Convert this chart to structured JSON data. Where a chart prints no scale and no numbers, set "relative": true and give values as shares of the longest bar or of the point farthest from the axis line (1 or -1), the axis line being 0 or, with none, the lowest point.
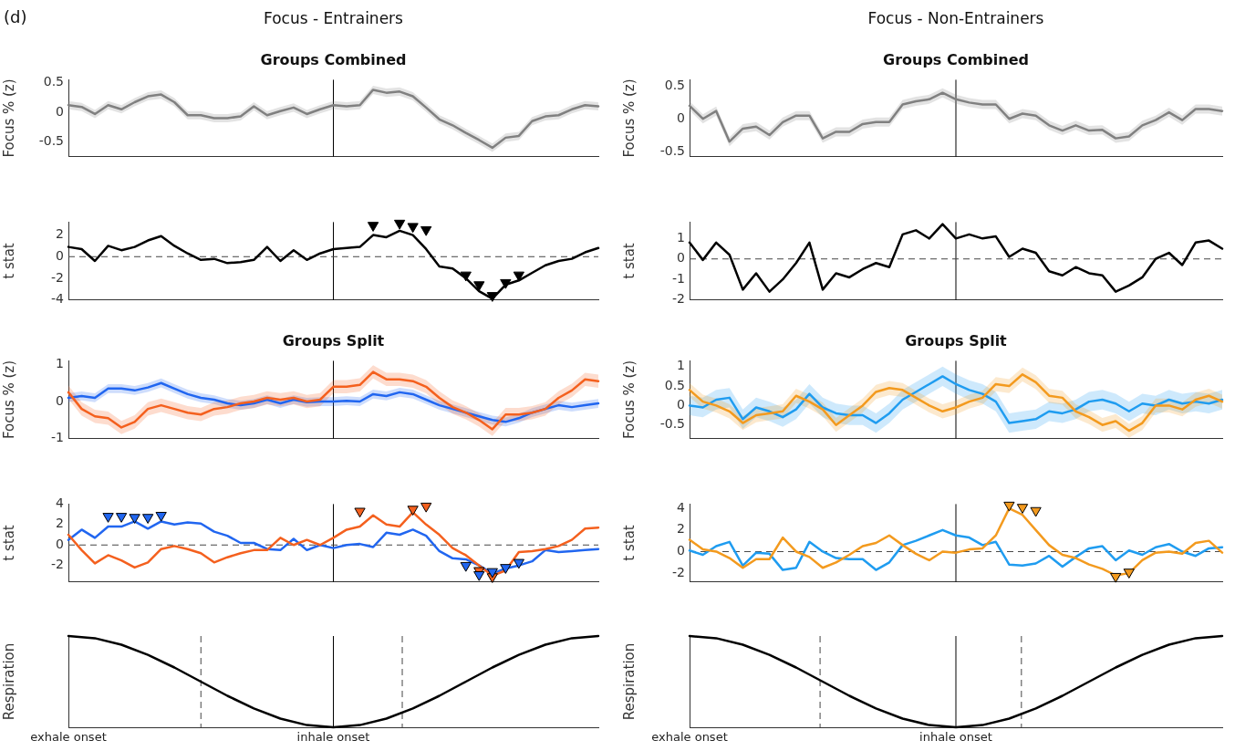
{
  "chart_data": [
    {
      "type": "line",
      "title": "Focus - Entrainers",
      "subtitle": "Groups Combined",
      "ylabel": "Focus % (z)",
      "annotations": [
        "(d)"
      ],
      "ylim": [
        -0.75,
        0.55
      ],
      "yticks": [
        -0.5,
        0,
        0.5
      ],
      "tick_labels": "y",
      "grid": false,
      "categories": [
        null,
        null,
        null,
        null,
        null,
        null,
        null,
        null,
        null,
        null,
        null,
        null,
        null,
        null,
        null,
        null,
        null,
        null,
        null,
        null,
        null,
        null,
        null,
        null,
        null,
        null,
        null,
        null,
        null,
        null,
        null,
        null,
        null,
        null,
        null,
        null,
        null,
        null,
        null,
        null,
        null
      ],
      "series": [
        {
          "color": "#808080",
          "values": [
            0.12,
            0.09,
            -0.03,
            0.12,
            0.05,
            0.17,
            0.27,
            0.3,
            0.17,
            -0.05,
            -0.05,
            -0.1,
            -0.1,
            -0.07,
            0.1,
            -0.05,
            0.02,
            0.08,
            -0.03,
            0.05,
            0.12,
            0.1,
            0.12,
            0.38,
            0.33,
            0.35,
            0.27,
            0.08,
            -0.12,
            -0.22,
            -0.35,
            -0.47,
            -0.6,
            -0.43,
            -0.4,
            -0.15,
            -0.07,
            -0.05,
            0.05,
            0.12,
            0.1
          ],
          "lower": [
            0.05,
            0.02,
            -0.1,
            0.05,
            -0.02,
            0.1,
            0.2,
            0.23,
            0.1,
            -0.12,
            -0.12,
            -0.17,
            -0.17,
            -0.14,
            0.03,
            -0.12,
            -0.05,
            0.01,
            -0.1,
            -0.02,
            0.05,
            0.03,
            0.05,
            0.31,
            0.26,
            0.28,
            0.2,
            0.01,
            -0.19,
            -0.29,
            -0.42,
            -0.54,
            -0.67,
            -0.5,
            -0.47,
            -0.22,
            -0.14,
            -0.12,
            -0.02,
            0.05,
            0.03
          ],
          "upper": [
            0.19,
            0.16,
            0.04,
            0.19,
            0.12,
            0.24,
            0.34,
            0.37,
            0.24,
            0.02,
            0.02,
            -0.03,
            -0.03,
            0.0,
            0.17,
            0.02,
            0.09,
            0.15,
            0.04,
            0.12,
            0.19,
            0.17,
            0.19,
            0.45,
            0.4,
            0.42,
            0.34,
            0.15,
            -0.05,
            -0.15,
            -0.28,
            -0.4,
            -0.53,
            -0.36,
            -0.33,
            -0.08,
            0.0,
            0.02,
            0.12,
            0.19,
            0.17
          ]
        }
      ]
    },
    {
      "type": "line",
      "title": "Focus - Non-Entrainers",
      "subtitle": "Groups Combined",
      "ylabel": "Focus % (z)",
      "ylim": [
        -0.58,
        0.6
      ],
      "yticks": [
        -0.5,
        0,
        0.5
      ],
      "tick_labels": "y",
      "grid": false,
      "categories": [
        null,
        null,
        null,
        null,
        null,
        null,
        null,
        null,
        null,
        null,
        null,
        null,
        null,
        null,
        null,
        null,
        null,
        null,
        null,
        null,
        null,
        null,
        null,
        null,
        null,
        null,
        null,
        null,
        null,
        null,
        null,
        null,
        null,
        null,
        null,
        null,
        null,
        null,
        null,
        null,
        null
      ],
      "series": [
        {
          "color": "#808080",
          "values": [
            0.2,
            0.0,
            0.12,
            -0.35,
            -0.15,
            -0.12,
            -0.25,
            -0.05,
            0.05,
            0.05,
            -0.3,
            -0.2,
            -0.2,
            -0.08,
            -0.05,
            -0.05,
            0.22,
            0.27,
            0.3,
            0.4,
            0.3,
            0.25,
            0.22,
            0.22,
            0.0,
            0.08,
            0.05,
            -0.1,
            -0.18,
            -0.1,
            -0.18,
            -0.17,
            -0.3,
            -0.27,
            -0.1,
            -0.02,
            0.1,
            -0.02,
            0.15,
            0.15,
            0.12
          ],
          "lower": [
            0.13,
            -0.07,
            0.05,
            -0.42,
            -0.22,
            -0.19,
            -0.32,
            -0.12,
            -0.02,
            -0.02,
            -0.37,
            -0.27,
            -0.27,
            -0.15,
            -0.12,
            -0.12,
            0.15,
            0.2,
            0.23,
            0.33,
            0.23,
            0.18,
            0.15,
            0.15,
            -0.07,
            0.01,
            -0.02,
            -0.17,
            -0.25,
            -0.17,
            -0.25,
            -0.24,
            -0.37,
            -0.34,
            -0.17,
            -0.09,
            0.03,
            -0.09,
            0.08,
            0.08,
            0.05
          ],
          "upper": [
            0.27,
            0.07,
            0.19,
            -0.28,
            -0.08,
            -0.05,
            -0.18,
            0.02,
            0.12,
            0.12,
            -0.23,
            -0.13,
            -0.13,
            -0.01,
            0.02,
            0.02,
            0.29,
            0.34,
            0.37,
            0.47,
            0.37,
            0.32,
            0.29,
            0.29,
            0.07,
            0.15,
            0.12,
            -0.03,
            -0.11,
            -0.03,
            -0.11,
            -0.1,
            -0.23,
            -0.2,
            -0.03,
            0.05,
            0.17,
            0.05,
            0.22,
            0.22,
            0.19
          ]
        }
      ]
    },
    {
      "type": "line",
      "ylabel": "t stat",
      "ylim": [
        -4,
        3.2
      ],
      "yticks": [
        -4,
        -2,
        0,
        2
      ],
      "tick_labels": "y",
      "grid": false,
      "categories": [
        null,
        null,
        null,
        null,
        null,
        null,
        null,
        null,
        null,
        null,
        null,
        null,
        null,
        null,
        null,
        null,
        null,
        null,
        null,
        null,
        null,
        null,
        null,
        null,
        null,
        null,
        null,
        null,
        null,
        null,
        null,
        null,
        null,
        null,
        null,
        null,
        null,
        null,
        null,
        null,
        null
      ],
      "ref_lines": [
        {
          "axis": "y",
          "value": 0,
          "line_style": "dashed"
        }
      ],
      "series": [
        {
          "color": "#000000",
          "values": [
            0.9,
            0.7,
            -0.4,
            1.0,
            0.6,
            0.9,
            1.5,
            1.9,
            1.0,
            0.3,
            -0.3,
            -0.2,
            -0.6,
            -0.5,
            -0.3,
            0.9,
            -0.4,
            0.6,
            -0.3,
            0.3,
            0.7,
            0.8,
            0.9,
            2.0,
            1.8,
            2.4,
            2.0,
            0.7,
            -0.9,
            -1.1,
            -2.0,
            -3.2,
            -3.9,
            -2.6,
            -2.2,
            -1.5,
            -0.8,
            -0.4,
            -0.2,
            0.4,
            0.8
          ]
        },
        {
          "type": "scatter",
          "marker": "triangle",
          "color": "#000000",
          "values": [
            null,
            null,
            null,
            null,
            null,
            null,
            null,
            null,
            null,
            null,
            null,
            null,
            null,
            null,
            null,
            null,
            null,
            null,
            null,
            null,
            null,
            null,
            null,
            2.9,
            null,
            3.1,
            2.8,
            2.5,
            null,
            null,
            -1.7,
            -2.6,
            -3.6,
            -2.4,
            -1.7,
            null,
            null,
            null,
            null,
            null,
            null
          ]
        }
      ]
    },
    {
      "type": "line",
      "ylabel": "t stat",
      "ylim": [
        -2,
        1.8
      ],
      "yticks": [
        -2,
        -1,
        0,
        1
      ],
      "tick_labels": "y",
      "grid": false,
      "categories": [
        null,
        null,
        null,
        null,
        null,
        null,
        null,
        null,
        null,
        null,
        null,
        null,
        null,
        null,
        null,
        null,
        null,
        null,
        null,
        null,
        null,
        null,
        null,
        null,
        null,
        null,
        null,
        null,
        null,
        null,
        null,
        null,
        null,
        null,
        null,
        null,
        null,
        null,
        null,
        null,
        null
      ],
      "ref_lines": [
        {
          "axis": "y",
          "value": 0,
          "line_style": "dashed"
        }
      ],
      "series": [
        {
          "color": "#000000",
          "values": [
            0.8,
            -0.05,
            0.8,
            0.2,
            -1.5,
            -0.7,
            -1.6,
            -1.0,
            -0.2,
            0.8,
            -1.5,
            -0.7,
            -0.9,
            -0.5,
            -0.2,
            -0.4,
            1.2,
            1.4,
            1.0,
            1.7,
            1.0,
            1.2,
            1.0,
            1.1,
            0.1,
            0.5,
            0.3,
            -0.6,
            -0.8,
            -0.4,
            -0.7,
            -0.8,
            -1.6,
            -1.3,
            -0.9,
            0.0,
            0.3,
            -0.3,
            0.8,
            0.9,
            0.5
          ]
        }
      ]
    },
    {
      "type": "line",
      "title": "Groups Split",
      "ylabel": "Focus % (z)",
      "ylim": [
        -1,
        1.1
      ],
      "yticks": [
        -1,
        0,
        1
      ],
      "tick_labels": "y",
      "grid": false,
      "categories": [
        null,
        null,
        null,
        null,
        null,
        null,
        null,
        null,
        null,
        null,
        null,
        null,
        null,
        null,
        null,
        null,
        null,
        null,
        null,
        null,
        null,
        null,
        null,
        null,
        null,
        null,
        null,
        null,
        null,
        null,
        null,
        null,
        null,
        null,
        null,
        null,
        null,
        null,
        null,
        null,
        null
      ],
      "series": [
        {
          "color": "#f4601e",
          "values": [
            0.25,
            -0.2,
            -0.4,
            -0.45,
            -0.7,
            -0.55,
            -0.2,
            -0.1,
            -0.2,
            -0.3,
            -0.35,
            -0.2,
            -0.15,
            -0.05,
            0.0,
            0.1,
            0.05,
            0.1,
            0.0,
            0.05,
            0.4,
            0.4,
            0.45,
            0.8,
            0.6,
            0.6,
            0.55,
            0.4,
            0.1,
            -0.15,
            -0.3,
            -0.5,
            -0.75,
            -0.35,
            -0.35,
            -0.3,
            -0.2,
            0.1,
            0.3,
            0.6,
            0.55
          ],
          "lower": [
            0.07,
            -0.38,
            -0.58,
            -0.63,
            -0.88,
            -0.73,
            -0.38,
            -0.28,
            -0.38,
            -0.48,
            -0.53,
            -0.38,
            -0.33,
            -0.23,
            -0.18,
            -0.08,
            -0.13,
            -0.08,
            -0.18,
            -0.13,
            0.22,
            0.22,
            0.27,
            0.62,
            0.42,
            0.42,
            0.37,
            0.22,
            -0.08,
            -0.33,
            -0.48,
            -0.68,
            -0.93,
            -0.53,
            -0.53,
            -0.48,
            -0.38,
            -0.08,
            0.12,
            0.42,
            0.37
          ],
          "upper": [
            0.43,
            -0.02,
            -0.22,
            -0.27,
            -0.52,
            -0.37,
            -0.02,
            0.08,
            -0.02,
            -0.12,
            -0.17,
            -0.02,
            0.03,
            0.13,
            0.18,
            0.28,
            0.23,
            0.28,
            0.18,
            0.23,
            0.58,
            0.58,
            0.63,
            0.98,
            0.78,
            0.78,
            0.73,
            0.58,
            0.28,
            0.03,
            -0.12,
            -0.32,
            -0.57,
            -0.17,
            -0.17,
            -0.12,
            -0.02,
            0.28,
            0.48,
            0.78,
            0.73
          ]
        },
        {
          "color": "#2166f0",
          "values": [
            0.1,
            0.15,
            0.1,
            0.35,
            0.35,
            0.3,
            0.38,
            0.5,
            0.35,
            0.2,
            0.1,
            0.05,
            -0.05,
            -0.1,
            -0.05,
            0.05,
            -0.05,
            0.05,
            -0.02,
            0.0,
            0.0,
            0.02,
            0.0,
            0.2,
            0.15,
            0.25,
            0.2,
            0.05,
            -0.1,
            -0.2,
            -0.3,
            -0.4,
            -0.5,
            -0.55,
            -0.45,
            -0.3,
            -0.2,
            -0.1,
            -0.15,
            -0.1,
            -0.05
          ],
          "lower": [
            -0.02,
            0.03,
            -0.02,
            0.23,
            0.23,
            0.18,
            0.26,
            0.38,
            0.23,
            0.08,
            -0.02,
            -0.07,
            -0.17,
            -0.22,
            -0.17,
            -0.07,
            -0.17,
            -0.07,
            -0.14,
            -0.12,
            -0.12,
            -0.1,
            -0.12,
            0.08,
            0.03,
            0.13,
            0.08,
            -0.07,
            -0.22,
            -0.32,
            -0.42,
            -0.52,
            -0.62,
            -0.67,
            -0.57,
            -0.42,
            -0.32,
            -0.22,
            -0.27,
            -0.22,
            -0.17
          ],
          "upper": [
            0.22,
            0.27,
            0.22,
            0.47,
            0.47,
            0.42,
            0.5,
            0.62,
            0.47,
            0.32,
            0.22,
            0.17,
            0.07,
            0.02,
            0.07,
            0.17,
            0.07,
            0.17,
            0.1,
            0.12,
            0.12,
            0.14,
            0.12,
            0.32,
            0.27,
            0.37,
            0.32,
            0.17,
            0.02,
            -0.08,
            -0.18,
            -0.28,
            -0.38,
            -0.43,
            -0.33,
            -0.18,
            -0.08,
            0.02,
            -0.03,
            0.02,
            0.07
          ]
        }
      ]
    },
    {
      "type": "line",
      "title": "Groups Split",
      "ylabel": "Focus % (z)",
      "ylim": [
        -0.85,
        1.15
      ],
      "yticks": [
        -0.5,
        0,
        0.5,
        1
      ],
      "tick_labels": "y",
      "grid": false,
      "categories": [
        null,
        null,
        null,
        null,
        null,
        null,
        null,
        null,
        null,
        null,
        null,
        null,
        null,
        null,
        null,
        null,
        null,
        null,
        null,
        null,
        null,
        null,
        null,
        null,
        null,
        null,
        null,
        null,
        null,
        null,
        null,
        null,
        null,
        null,
        null,
        null,
        null,
        null,
        null,
        null,
        null
      ],
      "series": [
        {
          "color": "#f39a1e",
          "values": [
            0.4,
            0.1,
            0.0,
            -0.15,
            -0.45,
            -0.25,
            -0.2,
            -0.15,
            0.25,
            0.1,
            -0.1,
            -0.5,
            -0.25,
            0.0,
            0.35,
            0.45,
            0.4,
            0.2,
            0.0,
            -0.15,
            -0.05,
            0.1,
            0.2,
            0.55,
            0.5,
            0.8,
            0.6,
            0.25,
            0.2,
            -0.15,
            -0.3,
            -0.5,
            -0.4,
            -0.65,
            -0.45,
            0.0,
            0.0,
            -0.1,
            0.15,
            0.25,
            0.1
          ],
          "lower": [
            0.22,
            -0.08,
            -0.18,
            -0.33,
            -0.63,
            -0.43,
            -0.38,
            -0.33,
            0.07,
            -0.08,
            -0.28,
            -0.68,
            -0.43,
            -0.18,
            0.17,
            0.27,
            0.22,
            0.02,
            -0.18,
            -0.33,
            -0.23,
            -0.08,
            0.02,
            0.37,
            0.32,
            0.62,
            0.42,
            0.07,
            0.02,
            -0.33,
            -0.48,
            -0.68,
            -0.58,
            -0.83,
            -0.63,
            -0.18,
            -0.18,
            -0.28,
            -0.03,
            0.07,
            -0.08
          ],
          "upper": [
            0.58,
            0.28,
            0.18,
            0.03,
            -0.27,
            -0.07,
            -0.02,
            0.03,
            0.43,
            0.28,
            0.08,
            -0.32,
            -0.07,
            0.18,
            0.53,
            0.63,
            0.58,
            0.38,
            0.18,
            0.03,
            0.13,
            0.28,
            0.38,
            0.73,
            0.68,
            0.98,
            0.78,
            0.43,
            0.38,
            0.03,
            -0.12,
            -0.32,
            -0.22,
            -0.47,
            -0.27,
            0.18,
            0.18,
            0.08,
            0.33,
            0.43,
            0.28
          ]
        },
        {
          "color": "#1f9cf0",
          "values": [
            0.0,
            -0.05,
            0.15,
            0.2,
            -0.35,
            -0.05,
            -0.15,
            -0.3,
            -0.1,
            0.3,
            -0.05,
            -0.2,
            -0.25,
            -0.25,
            -0.45,
            -0.2,
            0.15,
            0.35,
            0.55,
            0.75,
            0.55,
            0.4,
            0.3,
            0.1,
            -0.45,
            -0.4,
            -0.35,
            -0.15,
            -0.2,
            -0.1,
            0.1,
            0.15,
            0.05,
            -0.15,
            0.05,
            0.0,
            0.15,
            0.05,
            0.1,
            0.05,
            0.15
          ],
          "lower": [
            -0.25,
            -0.3,
            -0.1,
            -0.05,
            -0.6,
            -0.3,
            -0.4,
            -0.55,
            -0.35,
            0.05,
            -0.3,
            -0.45,
            -0.5,
            -0.5,
            -0.7,
            -0.45,
            -0.1,
            0.1,
            0.3,
            0.5,
            0.3,
            0.15,
            0.05,
            -0.15,
            -0.7,
            -0.65,
            -0.6,
            -0.4,
            -0.45,
            -0.35,
            -0.15,
            -0.1,
            -0.2,
            -0.4,
            -0.2,
            -0.25,
            -0.1,
            -0.2,
            -0.15,
            -0.2,
            -0.1
          ],
          "upper": [
            0.25,
            0.2,
            0.4,
            0.45,
            -0.1,
            0.2,
            0.1,
            -0.05,
            0.15,
            0.55,
            0.2,
            0.05,
            0.0,
            0.0,
            -0.2,
            0.05,
            0.4,
            0.6,
            0.8,
            1.0,
            0.8,
            0.65,
            0.55,
            0.35,
            -0.2,
            -0.15,
            -0.1,
            0.1,
            0.05,
            0.15,
            0.35,
            0.4,
            0.3,
            0.1,
            0.3,
            0.25,
            0.4,
            0.3,
            0.35,
            0.3,
            0.4
          ]
        }
      ]
    },
    {
      "type": "line",
      "ylabel": "t stat",
      "ylim": [
        -3.6,
        4
      ],
      "yticks": [
        -2,
        0,
        2,
        4
      ],
      "tick_labels": "y",
      "grid": false,
      "categories": [
        null,
        null,
        null,
        null,
        null,
        null,
        null,
        null,
        null,
        null,
        null,
        null,
        null,
        null,
        null,
        null,
        null,
        null,
        null,
        null,
        null,
        null,
        null,
        null,
        null,
        null,
        null,
        null,
        null,
        null,
        null,
        null,
        null,
        null,
        null,
        null,
        null,
        null,
        null,
        null,
        null
      ],
      "ref_lines": [
        {
          "axis": "y",
          "value": 0,
          "line_style": "dashed"
        }
      ],
      "series": [
        {
          "color": "#f4601e",
          "values": [
            1.0,
            -0.5,
            -1.8,
            -1.0,
            -1.5,
            -2.2,
            -1.7,
            -0.4,
            -0.1,
            -0.4,
            -0.8,
            -1.7,
            -1.2,
            -0.8,
            -0.5,
            -0.5,
            0.7,
            0.0,
            0.5,
            0.0,
            0.7,
            1.5,
            1.8,
            2.9,
            2.0,
            1.8,
            3.2,
            2.0,
            1.0,
            -0.3,
            -1.0,
            -2.0,
            -3.0,
            -2.5,
            -0.7,
            -0.6,
            -0.4,
            -0.1,
            0.5,
            1.6,
            1.7
          ]
        },
        {
          "color": "#2166f0",
          "values": [
            0.5,
            1.5,
            0.7,
            1.8,
            1.8,
            2.3,
            1.6,
            2.3,
            2.0,
            2.2,
            2.1,
            1.3,
            0.9,
            0.2,
            0.2,
            -0.4,
            -0.5,
            0.6,
            -0.5,
            0.0,
            -0.3,
            0.0,
            0.1,
            -0.2,
            1.2,
            1.0,
            1.5,
            0.9,
            -0.6,
            -1.3,
            -1.4,
            -2.0,
            -2.8,
            -2.3,
            -2.0,
            -1.6,
            -0.5,
            -0.7,
            -0.6,
            -0.5,
            -0.4
          ]
        },
        {
          "type": "scatter",
          "marker": "triangle",
          "color": "#2166f0",
          "values": [
            null,
            null,
            null,
            2.8,
            2.8,
            2.7,
            2.7,
            2.9,
            null,
            null,
            null,
            null,
            null,
            null,
            null,
            null,
            null,
            null,
            null,
            null,
            null,
            null,
            null,
            null,
            null,
            null,
            null,
            null,
            null,
            null,
            -2.0,
            -2.9,
            -2.6,
            -2.2,
            -1.7,
            null,
            null,
            null,
            null,
            null,
            null
          ]
        },
        {
          "type": "scatter",
          "marker": "triangle",
          "color": "#f4601e",
          "values": [
            null,
            null,
            null,
            null,
            null,
            null,
            null,
            null,
            null,
            null,
            null,
            null,
            null,
            null,
            null,
            null,
            null,
            null,
            null,
            null,
            null,
            null,
            3.3,
            null,
            null,
            null,
            3.5,
            3.8,
            null,
            null,
            null,
            -2.5,
            -3.1,
            null,
            null,
            null,
            null,
            null,
            null,
            null,
            null
          ]
        }
      ]
    },
    {
      "type": "line",
      "ylabel": "t stat",
      "ylim": [
        -2.8,
        4.4
      ],
      "yticks": [
        -2,
        0,
        2,
        4
      ],
      "tick_labels": "y",
      "grid": false,
      "categories": [
        null,
        null,
        null,
        null,
        null,
        null,
        null,
        null,
        null,
        null,
        null,
        null,
        null,
        null,
        null,
        null,
        null,
        null,
        null,
        null,
        null,
        null,
        null,
        null,
        null,
        null,
        null,
        null,
        null,
        null,
        null,
        null,
        null,
        null,
        null,
        null,
        null,
        null,
        null,
        null,
        null
      ],
      "ref_lines": [
        {
          "axis": "y",
          "value": 0,
          "line_style": "dashed"
        }
      ],
      "series": [
        {
          "color": "#f39a1e",
          "values": [
            1.1,
            0.2,
            0.0,
            -0.6,
            -1.5,
            -0.7,
            -0.7,
            1.3,
            0.0,
            -0.5,
            -1.5,
            -1.0,
            -0.3,
            0.5,
            0.8,
            1.5,
            0.6,
            -0.2,
            -0.8,
            0.0,
            -0.1,
            0.2,
            0.3,
            1.5,
            4.0,
            3.4,
            2.0,
            0.6,
            -0.3,
            -0.6,
            -1.2,
            -1.6,
            -2.2,
            -2.0,
            -0.8,
            -0.1,
            0.0,
            -0.2,
            0.8,
            1.0,
            -0.1
          ]
        },
        {
          "color": "#1f9cf0",
          "values": [
            0.1,
            -0.3,
            0.5,
            0.9,
            -1.3,
            -0.1,
            -0.2,
            -1.7,
            -1.5,
            0.9,
            0.0,
            -0.6,
            -0.7,
            -0.7,
            -1.7,
            -1.0,
            0.6,
            1.0,
            1.5,
            2.0,
            1.5,
            1.3,
            0.6,
            0.9,
            -1.2,
            -1.3,
            -1.1,
            -0.4,
            -1.4,
            -0.5,
            0.3,
            0.5,
            -0.8,
            0.1,
            -0.3,
            0.4,
            0.7,
            0.0,
            -0.4,
            0.3,
            0.4
          ]
        },
        {
          "type": "scatter",
          "marker": "triangle",
          "color": "#f39a1e",
          "values": [
            null,
            null,
            null,
            null,
            null,
            null,
            null,
            null,
            null,
            null,
            null,
            null,
            null,
            null,
            null,
            null,
            null,
            null,
            null,
            null,
            null,
            null,
            null,
            null,
            4.3,
            4.1,
            3.8,
            null,
            null,
            null,
            null,
            null,
            -2.3,
            -1.9,
            null,
            null,
            null,
            null,
            null,
            null,
            null
          ]
        }
      ]
    },
    {
      "type": "line",
      "ylabel": "Respiration",
      "relative": true,
      "tick_labels": "x",
      "grid": false,
      "categories": [
        "exhale onset",
        null,
        null,
        null,
        null,
        null,
        null,
        null,
        null,
        null,
        "inhale onset",
        null,
        null,
        null,
        null,
        null,
        null,
        null,
        null,
        null,
        null
      ],
      "series": [
        {
          "color": "#000000",
          "values": [
            1,
            0.976,
            0.905,
            0.794,
            0.655,
            0.5,
            0.345,
            0.206,
            0.095,
            0.024,
            0,
            0.024,
            0.095,
            0.206,
            0.345,
            0.5,
            0.655,
            0.794,
            0.905,
            0.976,
            1
          ]
        }
      ]
    },
    {
      "type": "line",
      "ylabel": "Respiration",
      "relative": true,
      "tick_labels": "x",
      "grid": false,
      "categories": [
        "exhale onset",
        null,
        null,
        null,
        null,
        null,
        null,
        null,
        null,
        null,
        "inhale onset",
        null,
        null,
        null,
        null,
        null,
        null,
        null,
        null,
        null,
        null
      ],
      "series": [
        {
          "color": "#000000",
          "values": [
            1,
            0.976,
            0.905,
            0.794,
            0.655,
            0.5,
            0.345,
            0.206,
            0.095,
            0.024,
            0,
            0.024,
            0.095,
            0.206,
            0.345,
            0.5,
            0.655,
            0.794,
            0.905,
            0.976,
            1
          ]
        }
      ]
    }
  ]
}
